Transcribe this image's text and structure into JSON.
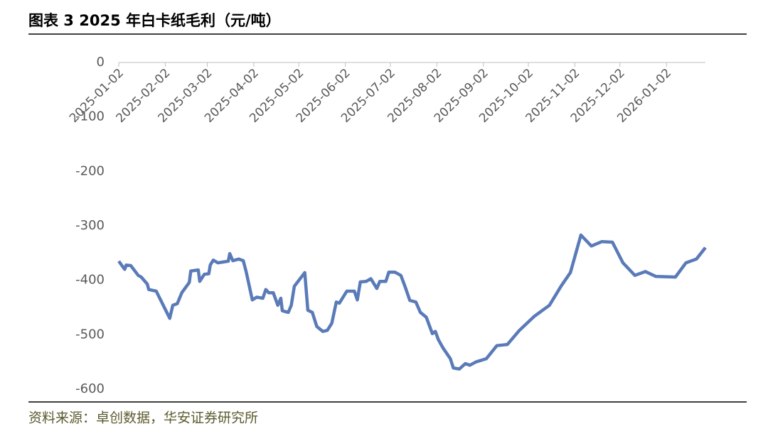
{
  "chart_data": {
    "type": "line",
    "title": "图表 3 2025 年白卡纸毛利（元/吨）",
    "source": "资料来源：卓创数据，华安证券研究所",
    "x": [
      "2025-01-02",
      "2025-01-06",
      "2025-01-07",
      "2025-01-10",
      "2025-01-15",
      "2025-01-17",
      "2025-01-21",
      "2025-01-22",
      "2025-01-27",
      "2025-02-05",
      "2025-02-07",
      "2025-02-10",
      "2025-02-13",
      "2025-02-18",
      "2025-02-19",
      "2025-02-24",
      "2025-02-25",
      "2025-02-28",
      "2025-03-03",
      "2025-03-04",
      "2025-03-06",
      "2025-03-09",
      "2025-03-16",
      "2025-03-17",
      "2025-03-19",
      "2025-03-23",
      "2025-03-26",
      "2025-03-28",
      "2025-04-01",
      "2025-04-04",
      "2025-04-08",
      "2025-04-10",
      "2025-04-12",
      "2025-04-15",
      "2025-04-18",
      "2025-04-20",
      "2025-04-21",
      "2025-04-25",
      "2025-04-27",
      "2025-04-29",
      "2025-05-06",
      "2025-05-08",
      "2025-05-11",
      "2025-05-14",
      "2025-05-18",
      "2025-05-21",
      "2025-05-24",
      "2025-05-27",
      "2025-05-29",
      "2025-06-03",
      "2025-06-08",
      "2025-06-10",
      "2025-06-12",
      "2025-06-16",
      "2025-06-19",
      "2025-06-23",
      "2025-06-25",
      "2025-06-29",
      "2025-07-01",
      "2025-07-05",
      "2025-07-09",
      "2025-07-12",
      "2025-07-15",
      "2025-07-19",
      "2025-07-22",
      "2025-07-26",
      "2025-07-30",
      "2025-08-01",
      "2025-08-03",
      "2025-08-06",
      "2025-08-11",
      "2025-08-13",
      "2025-08-17",
      "2025-08-21",
      "2025-08-24",
      "2025-08-28",
      "2025-09-04",
      "2025-09-11",
      "2025-09-18",
      "2025-09-26",
      "2025-10-06",
      "2025-10-16",
      "2025-10-24",
      "2025-10-30",
      "2025-11-06",
      "2025-11-13",
      "2025-11-20",
      "2025-11-27",
      "2025-12-04",
      "2025-12-12",
      "2025-12-19",
      "2025-12-26",
      "2026-01-08",
      "2026-01-15",
      "2026-01-22",
      "2026-01-28"
    ],
    "series": [
      {
        "name": "白卡纸毛利",
        "color": "#5a7ab8",
        "values": [
          -365,
          -380,
          -372,
          -373,
          -391,
          -394,
          -407,
          -417,
          -420,
          -470,
          -446,
          -443,
          -423,
          -404,
          -383,
          -381,
          -402,
          -389,
          -388,
          -372,
          -363,
          -368,
          -365,
          -351,
          -364,
          -361,
          -364,
          -385,
          -436,
          -431,
          -433,
          -417,
          -423,
          -423,
          -446,
          -433,
          -456,
          -459,
          -446,
          -411,
          -386,
          -455,
          -459,
          -485,
          -494,
          -492,
          -479,
          -440,
          -442,
          -420,
          -420,
          -436,
          -403,
          -402,
          -397,
          -415,
          -402,
          -402,
          -385,
          -385,
          -391,
          -413,
          -437,
          -440,
          -459,
          -468,
          -498,
          -494,
          -509,
          -524,
          -544,
          -561,
          -563,
          -553,
          -556,
          -550,
          -544,
          -520,
          -518,
          -492,
          -466,
          -446,
          -410,
          -386,
          -317,
          -337,
          -329,
          -330,
          -368,
          -391,
          -384,
          -393,
          -394,
          -368,
          -361,
          -340
        ]
      }
    ],
    "xlim": [
      "2025-01-02",
      "2026-01-28"
    ],
    "xticks": [
      "2025-01-02",
      "2025-02-02",
      "2025-03-02",
      "2025-04-02",
      "2025-05-02",
      "2025-06-02",
      "2025-07-02",
      "2025-08-02",
      "2025-09-02",
      "2025-10-02",
      "2025-11-02",
      "2025-12-02",
      "2026-01-02"
    ],
    "ylim": [
      -600,
      0
    ],
    "yticks": [
      0,
      -100,
      -200,
      -300,
      -400,
      -500,
      -600
    ],
    "grid": false
  }
}
